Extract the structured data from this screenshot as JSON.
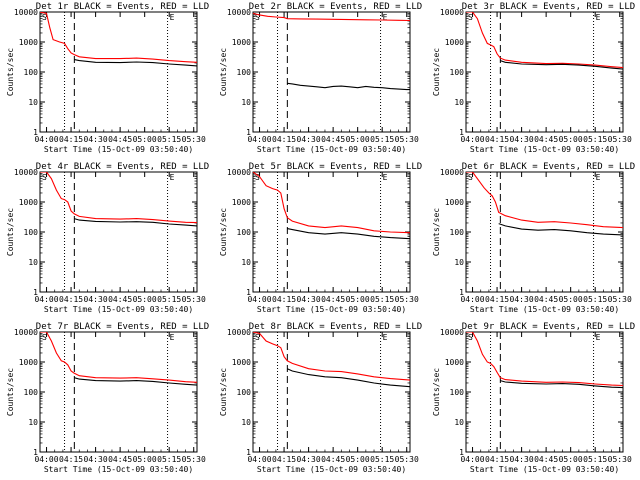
{
  "chart_data": [
    {
      "type": "line",
      "title": "Det 1r BLACK = Events, RED = LLD",
      "xlabel": "Start Time (15-Oct-09 03:50:40)",
      "ylabel": "Counts/sec",
      "x_ticks": [
        "04:00",
        "04:15",
        "04:30",
        "04:45",
        "05:00",
        "05:15",
        "05:30"
      ],
      "y_ticks": [
        "1",
        "10",
        "100",
        "1000",
        "10000"
      ],
      "xlim": [
        "03:56",
        "05:32"
      ],
      "ylim": [
        1,
        10000
      ],
      "y_scale": "log",
      "markers": {
        "saa_in": "S",
        "saa_out": "E"
      },
      "vlines_dotted": [
        "04:11",
        "05:14"
      ],
      "vline_dashed": "04:17",
      "series": [
        {
          "color": "#ff0000",
          "x": [
            "03:56",
            "04:00",
            "04:02",
            "04:04",
            "04:08",
            "04:11",
            "04:13",
            "04:15",
            "04:17",
            "04:20",
            "04:30",
            "04:45",
            "04:55",
            "05:05",
            "05:15",
            "05:25",
            "05:32"
          ],
          "values": [
            10000,
            9000,
            3000,
            1200,
            1000,
            900,
            600,
            430,
            380,
            320,
            280,
            280,
            290,
            270,
            240,
            220,
            210
          ]
        },
        {
          "color": "#000000",
          "x": [
            "04:17",
            "04:20",
            "04:30",
            "04:45",
            "04:55",
            "05:05",
            "05:15",
            "05:25",
            "05:32"
          ],
          "values": [
            260,
            240,
            210,
            205,
            215,
            205,
            185,
            170,
            160
          ]
        }
      ]
    },
    {
      "type": "line",
      "title": "Det 2r BLACK = Events, RED = LLD",
      "xlabel": "Start Time (15-Oct-09 03:50:40)",
      "ylabel": "Counts/sec",
      "x_ticks": [
        "04:00",
        "04:15",
        "04:30",
        "04:45",
        "05:00",
        "05:15",
        "05:30"
      ],
      "y_ticks": [
        "1",
        "10",
        "100",
        "1000",
        "10000"
      ],
      "xlim": [
        "03:56",
        "05:32"
      ],
      "ylim": [
        1,
        10000
      ],
      "y_scale": "log",
      "markers": {
        "saa_in": "S",
        "saa_out": "E"
      },
      "vlines_dotted": [
        "04:11",
        "05:14"
      ],
      "vline_dashed": "04:17",
      "series": [
        {
          "color": "#ff0000",
          "x": [
            "03:56",
            "04:00",
            "04:05",
            "04:10",
            "04:15",
            "04:17",
            "04:25",
            "04:35",
            "04:45",
            "04:55",
            "05:05",
            "05:15",
            "05:25",
            "05:32"
          ],
          "values": [
            9000,
            8000,
            7200,
            6800,
            6500,
            6000,
            5900,
            5800,
            5700,
            5600,
            5500,
            5400,
            5300,
            5200
          ]
        },
        {
          "color": "#000000",
          "x": [
            "04:17",
            "04:20",
            "04:25",
            "04:30",
            "04:35",
            "04:40",
            "04:45",
            "04:50",
            "04:55",
            "05:00",
            "05:05",
            "05:10",
            "05:15",
            "05:20",
            "05:25",
            "05:30",
            "05:32"
          ],
          "values": [
            42,
            40,
            36,
            34,
            32,
            30,
            33,
            34,
            32,
            30,
            33,
            31,
            30,
            28,
            27,
            26,
            26
          ]
        }
      ]
    },
    {
      "type": "line",
      "title": "Det 3r BLACK = Events, RED = LLD",
      "xlabel": "Start Time (15-Oct-09 03:50:40)",
      "ylabel": "Counts/sec",
      "x_ticks": [
        "04:00",
        "04:15",
        "04:30",
        "04:45",
        "05:00",
        "05:15",
        "05:30"
      ],
      "y_ticks": [
        "1",
        "10",
        "100",
        "1000",
        "10000"
      ],
      "xlim": [
        "03:56",
        "05:32"
      ],
      "ylim": [
        1,
        10000
      ],
      "y_scale": "log",
      "markers": {
        "saa_in": "S",
        "saa_out": "E"
      },
      "vlines_dotted": [
        "04:11",
        "05:14"
      ],
      "vline_dashed": "04:17",
      "series": [
        {
          "color": "#ff0000",
          "x": [
            "03:56",
            "04:00",
            "04:03",
            "04:06",
            "04:09",
            "04:11",
            "04:13",
            "04:15",
            "04:17",
            "04:20",
            "04:30",
            "04:45",
            "04:55",
            "05:05",
            "05:15",
            "05:25",
            "05:32"
          ],
          "values": [
            10000,
            10000,
            6000,
            2000,
            900,
            800,
            700,
            400,
            290,
            250,
            210,
            190,
            195,
            185,
            170,
            150,
            140
          ]
        },
        {
          "color": "#000000",
          "x": [
            "04:17",
            "04:20",
            "04:30",
            "04:45",
            "04:55",
            "05:05",
            "05:15",
            "05:25",
            "05:32"
          ],
          "values": [
            240,
            210,
            185,
            175,
            180,
            170,
            155,
            135,
            125
          ]
        }
      ]
    },
    {
      "type": "line",
      "title": "Det 4r BLACK = Events, RED = LLD",
      "xlabel": "Start Time (15-Oct-09 03:50:40)",
      "ylabel": "Counts/sec",
      "x_ticks": [
        "04:00",
        "04:15",
        "04:30",
        "04:45",
        "05:00",
        "05:15",
        "05:30"
      ],
      "y_ticks": [
        "1",
        "10",
        "100",
        "1000",
        "10000"
      ],
      "xlim": [
        "03:56",
        "05:32"
      ],
      "ylim": [
        1,
        10000
      ],
      "y_scale": "log",
      "markers": {
        "saa_in": "S",
        "saa_out": "E"
      },
      "vlines_dotted": [
        "04:11",
        "05:14"
      ],
      "vline_dashed": "04:17",
      "series": [
        {
          "color": "#ff0000",
          "x": [
            "03:56",
            "04:00",
            "04:03",
            "04:06",
            "04:09",
            "04:11",
            "04:13",
            "04:15",
            "04:17",
            "04:20",
            "04:30",
            "04:45",
            "04:55",
            "05:05",
            "05:15",
            "05:25",
            "05:32"
          ],
          "values": [
            10000,
            10000,
            6000,
            2500,
            1300,
            1200,
            1000,
            500,
            400,
            330,
            280,
            270,
            280,
            260,
            230,
            210,
            205
          ]
        },
        {
          "color": "#000000",
          "x": [
            "04:17",
            "04:20",
            "04:30",
            "04:45",
            "04:55",
            "05:05",
            "05:15",
            "05:25",
            "05:32"
          ],
          "values": [
            280,
            250,
            225,
            215,
            220,
            210,
            185,
            170,
            160
          ]
        }
      ]
    },
    {
      "type": "line",
      "title": "Det 5r BLACK = Events, RED = LLD",
      "xlabel": "Start Time (15-Oct-09 03:50:40)",
      "ylabel": "Counts/sec",
      "x_ticks": [
        "04:00",
        "04:15",
        "04:30",
        "04:45",
        "05:00",
        "05:15",
        "05:30"
      ],
      "y_ticks": [
        "1",
        "10",
        "100",
        "1000",
        "10000"
      ],
      "xlim": [
        "03:56",
        "05:32"
      ],
      "ylim": [
        1,
        10000
      ],
      "y_scale": "log",
      "markers": {
        "saa_in": "S",
        "saa_out": "E"
      },
      "vlines_dotted": [
        "04:11",
        "05:14"
      ],
      "vline_dashed": "04:17",
      "series": [
        {
          "color": "#ff0000",
          "x": [
            "03:56",
            "04:00",
            "04:04",
            "04:08",
            "04:11",
            "04:13",
            "04:15",
            "04:17",
            "04:20",
            "04:30",
            "04:40",
            "04:50",
            "05:00",
            "05:10",
            "05:20",
            "05:32"
          ],
          "values": [
            10000,
            7000,
            3500,
            2800,
            2500,
            2000,
            600,
            300,
            230,
            160,
            140,
            160,
            140,
            110,
            100,
            95
          ]
        },
        {
          "color": "#000000",
          "x": [
            "04:17",
            "04:20",
            "04:30",
            "04:40",
            "04:50",
            "05:00",
            "05:10",
            "05:20",
            "05:32"
          ],
          "values": [
            130,
            120,
            95,
            85,
            95,
            85,
            72,
            65,
            60
          ]
        }
      ]
    },
    {
      "type": "line",
      "title": "Det 6r BLACK = Events, RED = LLD",
      "xlabel": "Start Time (15-Oct-09 03:50:40)",
      "ylabel": "Counts/sec",
      "x_ticks": [
        "04:00",
        "04:15",
        "04:30",
        "04:45",
        "05:00",
        "05:15",
        "05:30"
      ],
      "y_ticks": [
        "1",
        "10",
        "100",
        "1000",
        "10000"
      ],
      "xlim": [
        "03:56",
        "05:32"
      ],
      "ylim": [
        1,
        10000
      ],
      "y_scale": "log",
      "markers": {
        "saa_in": "S",
        "saa_out": "E"
      },
      "vlines_dotted": [
        "04:11",
        "05:14"
      ],
      "vline_dashed": "04:17",
      "series": [
        {
          "color": "#ff0000",
          "x": [
            "03:56",
            "04:00",
            "04:03",
            "04:07",
            "04:10",
            "04:12",
            "04:14",
            "04:16",
            "04:20",
            "04:30",
            "04:40",
            "04:50",
            "05:00",
            "05:10",
            "05:20",
            "05:32"
          ],
          "values": [
            10000,
            10000,
            6000,
            3000,
            2000,
            1600,
            1000,
            450,
            350,
            250,
            210,
            220,
            200,
            175,
            150,
            140
          ]
        },
        {
          "color": "#000000",
          "x": [
            "04:16",
            "04:20",
            "04:30",
            "04:40",
            "04:50",
            "05:00",
            "05:10",
            "05:20",
            "05:32"
          ],
          "values": [
            190,
            160,
            125,
            115,
            120,
            110,
            95,
            85,
            80
          ]
        }
      ]
    },
    {
      "type": "line",
      "title": "Det 7r BLACK = Events, RED = LLD",
      "xlabel": "Start Time (15-Oct-09 03:50:40)",
      "ylabel": "Counts/sec",
      "x_ticks": [
        "04:00",
        "04:15",
        "04:30",
        "04:45",
        "05:00",
        "05:15",
        "05:30"
      ],
      "y_ticks": [
        "1",
        "10",
        "100",
        "1000",
        "10000"
      ],
      "xlim": [
        "03:56",
        "05:32"
      ],
      "ylim": [
        1,
        10000
      ],
      "y_scale": "log",
      "markers": {
        "saa_in": "S",
        "saa_out": "E"
      },
      "vlines_dotted": [
        "04:11",
        "05:14"
      ],
      "vline_dashed": "04:17",
      "series": [
        {
          "color": "#ff0000",
          "x": [
            "03:56",
            "04:00",
            "04:03",
            "04:06",
            "04:09",
            "04:11",
            "04:13",
            "04:15",
            "04:17",
            "04:20",
            "04:30",
            "04:45",
            "04:55",
            "05:05",
            "05:15",
            "05:25",
            "05:32"
          ],
          "values": [
            10000,
            10000,
            5000,
            2000,
            1100,
            1000,
            800,
            500,
            420,
            350,
            300,
            290,
            300,
            275,
            250,
            220,
            210
          ]
        },
        {
          "color": "#000000",
          "x": [
            "04:17",
            "04:20",
            "04:30",
            "04:45",
            "04:55",
            "05:05",
            "05:15",
            "05:25",
            "05:32"
          ],
          "values": [
            300,
            270,
            240,
            230,
            240,
            225,
            200,
            180,
            170
          ]
        }
      ]
    },
    {
      "type": "line",
      "title": "Det 8r BLACK = Events, RED = LLD",
      "xlabel": "Start Time (15-Oct-09 03:50:40)",
      "ylabel": "Counts/sec",
      "x_ticks": [
        "04:00",
        "04:15",
        "04:30",
        "04:45",
        "05:00",
        "05:15",
        "05:30"
      ],
      "y_ticks": [
        "1",
        "10",
        "100",
        "1000",
        "10000"
      ],
      "xlim": [
        "03:56",
        "05:32"
      ],
      "ylim": [
        1,
        10000
      ],
      "y_scale": "log",
      "markers": {
        "saa_in": "S",
        "saa_out": "E"
      },
      "vlines_dotted": [
        "04:11",
        "05:14"
      ],
      "vline_dashed": "04:17",
      "series": [
        {
          "color": "#ff0000",
          "x": [
            "03:56",
            "04:00",
            "04:04",
            "04:08",
            "04:11",
            "04:13",
            "04:15",
            "04:17",
            "04:20",
            "04:30",
            "04:40",
            "04:50",
            "05:00",
            "05:10",
            "05:20",
            "05:32"
          ],
          "values": [
            10000,
            9000,
            5000,
            4000,
            3500,
            3000,
            1500,
            1100,
            900,
            600,
            500,
            480,
            400,
            320,
            280,
            250
          ]
        },
        {
          "color": "#000000",
          "x": [
            "04:17",
            "04:20",
            "04:30",
            "04:40",
            "04:50",
            "05:00",
            "05:10",
            "05:20",
            "05:32"
          ],
          "values": [
            600,
            500,
            380,
            320,
            300,
            250,
            200,
            170,
            150
          ]
        }
      ]
    },
    {
      "type": "line",
      "title": "Det 9r BLACK = Events, RED = LLD",
      "xlabel": "Start Time (15-Oct-09 03:50:40)",
      "ylabel": "Counts/sec",
      "x_ticks": [
        "04:00",
        "04:15",
        "04:30",
        "04:45",
        "05:00",
        "05:15",
        "05:30"
      ],
      "y_ticks": [
        "1",
        "10",
        "100",
        "1000",
        "10000"
      ],
      "xlim": [
        "03:56",
        "05:32"
      ],
      "ylim": [
        1,
        10000
      ],
      "y_scale": "log",
      "markers": {
        "saa_in": "S",
        "saa_out": "E"
      },
      "vlines_dotted": [
        "04:11",
        "05:14"
      ],
      "vline_dashed": "04:17",
      "series": [
        {
          "color": "#ff0000",
          "x": [
            "03:56",
            "04:00",
            "04:03",
            "04:06",
            "04:09",
            "04:11",
            "04:13",
            "04:15",
            "04:17",
            "04:20",
            "04:30",
            "04:45",
            "04:55",
            "05:05",
            "05:15",
            "05:25",
            "05:32"
          ],
          "values": [
            10000,
            10000,
            5000,
            1800,
            1000,
            900,
            700,
            450,
            300,
            260,
            230,
            210,
            215,
            205,
            185,
            170,
            165
          ]
        },
        {
          "color": "#000000",
          "x": [
            "04:17",
            "04:20",
            "04:30",
            "04:45",
            "04:55",
            "05:05",
            "05:15",
            "05:25",
            "05:32"
          ],
          "values": [
            240,
            215,
            195,
            185,
            190,
            180,
            160,
            145,
            140
          ]
        }
      ]
    }
  ]
}
